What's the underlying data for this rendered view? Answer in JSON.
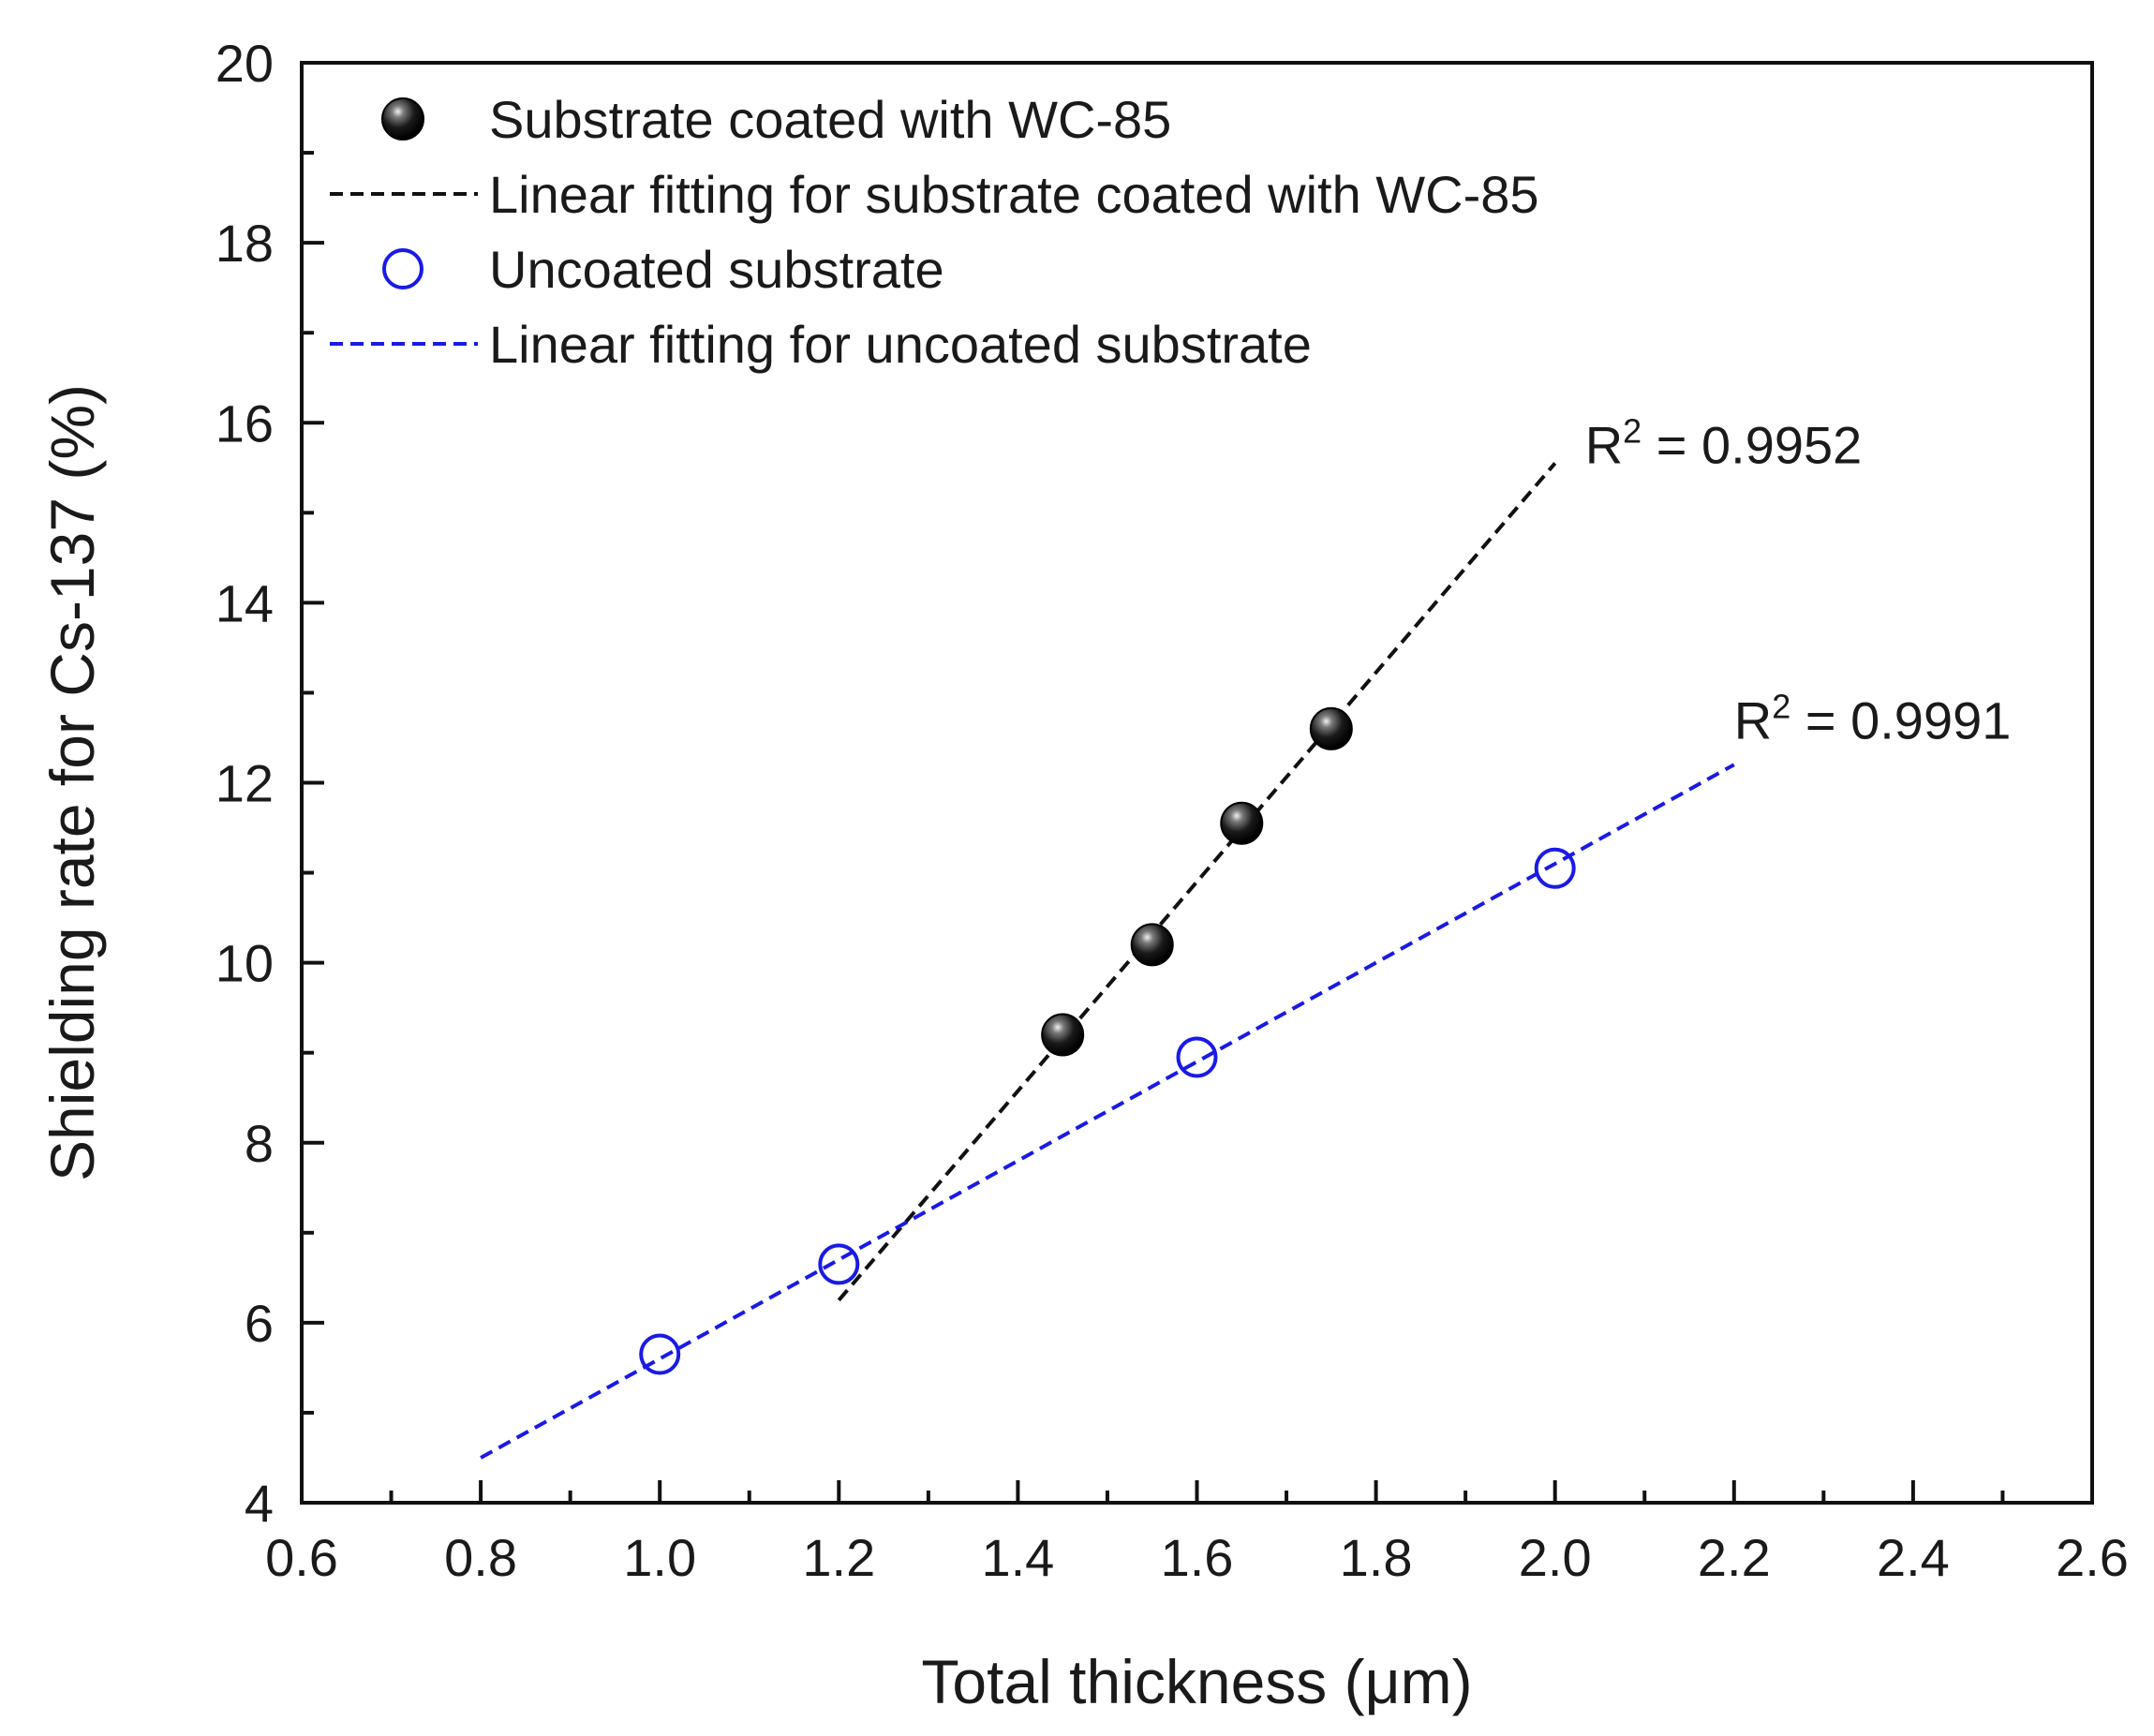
{
  "chart_data": {
    "type": "scatter",
    "xlabel": "Total thickness (μm)",
    "ylabel": "Shielding rate for Cs-137 (%)",
    "xlim": [
      0.6,
      2.6
    ],
    "ylim": [
      4,
      20
    ],
    "xticks": [
      "0.6",
      "0.8",
      "1.0",
      "1.2",
      "1.4",
      "1.6",
      "1.8",
      "2.0",
      "2.2",
      "2.4",
      "2.6"
    ],
    "yticks": [
      "4",
      "6",
      "8",
      "10",
      "12",
      "14",
      "16",
      "18",
      "20"
    ],
    "grid": false,
    "legend_position": "top-left",
    "series": [
      {
        "name": "Substrate coated with WC-85",
        "marker": "filled-sphere",
        "color": "#111111",
        "x": [
          1.45,
          1.55,
          1.65,
          1.75
        ],
        "y": [
          9.2,
          10.2,
          11.55,
          12.6
        ]
      },
      {
        "name": "Linear fitting for substrate coated with WC-85",
        "line": "dashed",
        "color": "#111111",
        "x": [
          1.2,
          2.0
        ],
        "y": [
          6.25,
          15.55
        ],
        "r2_label": "R",
        "r2_exp": "2",
        "r2_value": " = 0.9952"
      },
      {
        "name": "Uncoated substrate",
        "marker": "open-circle",
        "color": "#1a1ae6",
        "x": [
          1.0,
          1.2,
          1.6,
          2.0
        ],
        "y": [
          5.65,
          6.65,
          8.95,
          11.05
        ]
      },
      {
        "name": "Linear fitting for uncoated substrate",
        "line": "dashed",
        "color": "#1a1ae6",
        "x": [
          0.8,
          2.2
        ],
        "y": [
          4.5,
          12.2
        ],
        "r2_label": "R",
        "r2_exp": "2",
        "r2_value": " = 0.9991"
      }
    ]
  }
}
